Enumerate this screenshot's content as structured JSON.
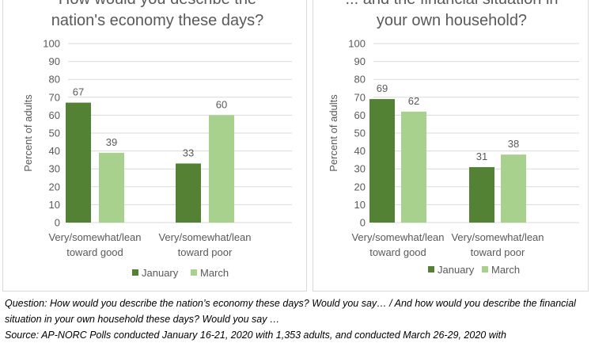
{
  "chart_data": [
    {
      "type": "bar",
      "title_lines": [
        "How would you describe the",
        "nation's economy these days?"
      ],
      "ylabel": "Percent of adults",
      "ylim": [
        0,
        100
      ],
      "yticks": [
        0,
        10,
        20,
        30,
        40,
        50,
        60,
        70,
        80,
        90,
        100
      ],
      "categories": [
        [
          "Very/somewhat/lean",
          "toward good"
        ],
        [
          "Very/somewhat/lean",
          "toward poor"
        ]
      ],
      "series": [
        {
          "name": "January",
          "values": [
            67,
            33
          ],
          "color": "#548235"
        },
        {
          "name": "March",
          "values": [
            39,
            60
          ],
          "color": "#a9d18e"
        }
      ],
      "legend": "bottom",
      "grid": true
    },
    {
      "type": "bar",
      "title_lines": [
        "... and the financial situation in",
        "your own household?"
      ],
      "ylabel": "Percent of adults",
      "ylim": [
        0,
        100
      ],
      "yticks": [
        0,
        10,
        20,
        30,
        40,
        50,
        60,
        70,
        80,
        90,
        100
      ],
      "categories": [
        [
          "Very/somewhat/lean",
          "toward good"
        ],
        [
          "Very/somewhat/lean",
          "toward poor"
        ]
      ],
      "series": [
        {
          "name": "January",
          "values": [
            69,
            31
          ],
          "color": "#548235"
        },
        {
          "name": "March",
          "values": [
            62,
            38
          ],
          "color": "#a9d18e"
        }
      ],
      "legend": "bottom",
      "grid": true
    }
  ],
  "captions": {
    "question": "Question: How would you describe the nation’s economy these days? Would you say… / And how would you describe the financial situation in your own household these days? Would you say …",
    "source": "Source: AP-NORC Polls conducted January 16-21, 2020 with 1,353 adults, and conducted March 26-29, 2020 with"
  },
  "colors": {
    "grid": "#d9d9d9",
    "axis_text": "#595959",
    "border": "#d9d9d9"
  }
}
